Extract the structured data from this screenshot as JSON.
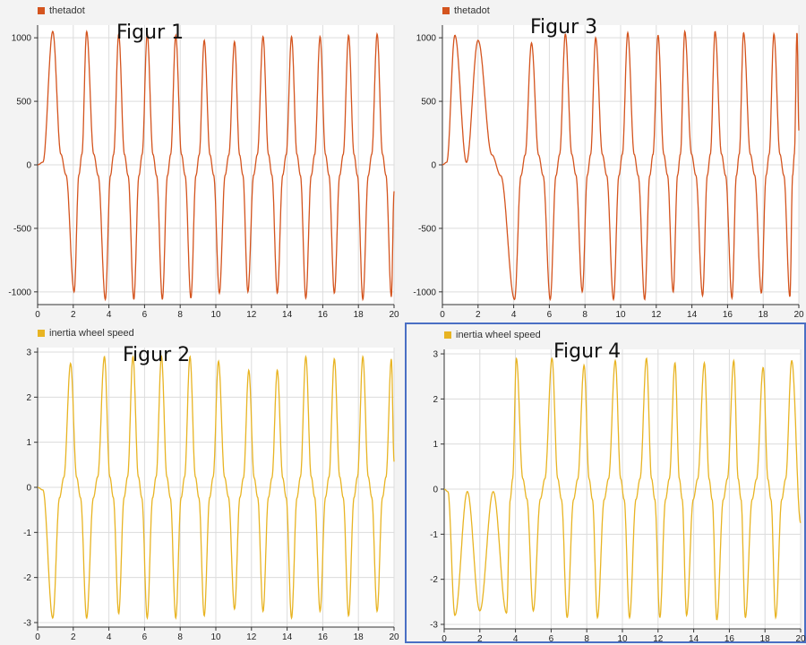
{
  "chart_data": [
    {
      "id": "panel-1",
      "type": "line",
      "figure_label": "Figur 1",
      "series": [
        {
          "name": "thetadot",
          "color": "#d4541e",
          "amplitude": 1000,
          "kind": "thetadot",
          "initial_hump": false
        }
      ],
      "xlim": [
        0,
        20
      ],
      "ylim": [
        -1100,
        1100
      ],
      "xticks": [
        0,
        2,
        4,
        6,
        8,
        10,
        12,
        14,
        16,
        18,
        20
      ],
      "yticks": [
        1000,
        500,
        0,
        -500,
        -1000
      ],
      "peaks_x": [
        0.85,
        2.75,
        4.55,
        6.15,
        7.75,
        9.35,
        11.05,
        12.65,
        14.25,
        15.85,
        17.45,
        19.05
      ],
      "peaks_y": [
        1050,
        1050,
        1030,
        1030,
        1020,
        980,
        970,
        1010,
        1010,
        1010,
        1020,
        1030
      ],
      "troughs_x": [
        2.05,
        3.8,
        5.4,
        7.0,
        8.6,
        10.2,
        11.8,
        13.45,
        15.05,
        16.65,
        18.25,
        19.85
      ],
      "troughs_y": [
        -1000,
        -1060,
        -1060,
        -1060,
        -1050,
        -1010,
        -1000,
        -1010,
        -1050,
        -1010,
        -1060,
        -1040
      ],
      "grid": true,
      "legend_position": "top-left"
    },
    {
      "id": "panel-3",
      "type": "line",
      "figure_label": "Figur 3",
      "series": [
        {
          "name": "thetadot",
          "color": "#d4541e",
          "amplitude": 1000,
          "kind": "thetadot",
          "initial_hump": true
        }
      ],
      "xlim": [
        0,
        20
      ],
      "ylim": [
        -1100,
        1100
      ],
      "xticks": [
        0,
        2,
        4,
        6,
        8,
        10,
        12,
        14,
        16,
        18,
        20
      ],
      "yticks": [
        1000,
        500,
        0,
        -500,
        -1000
      ],
      "humps_x": [
        0.7,
        2.0
      ],
      "humps_y": [
        1020,
        980
      ],
      "peaks_x": [
        5.0,
        6.9,
        8.6,
        10.4,
        12.1,
        13.6,
        15.3,
        16.9,
        18.6,
        19.9
      ],
      "peaks_y": [
        960,
        1030,
        1000,
        1040,
        1020,
        1050,
        1050,
        1040,
        1030,
        1050
      ],
      "troughs_x": [
        4.05,
        6.05,
        7.85,
        9.6,
        11.35,
        12.95,
        14.6,
        16.25,
        17.9,
        19.5
      ],
      "troughs_y": [
        -1060,
        -1060,
        -1000,
        -1060,
        -1060,
        -1000,
        -1030,
        -1050,
        -1010,
        -1040
      ],
      "grid": true,
      "legend_position": "top-left"
    },
    {
      "id": "panel-2",
      "type": "line",
      "figure_label": "Figur 2",
      "series": [
        {
          "name": "inertia wheel speed",
          "color": "#e8b423",
          "kind": "speed"
        }
      ],
      "xlim": [
        0,
        20
      ],
      "ylim": [
        -3.1,
        3.1
      ],
      "xticks": [
        0,
        2,
        4,
        6,
        8,
        10,
        12,
        14,
        16,
        18,
        20
      ],
      "yticks": [
        3,
        2,
        1,
        0,
        -1,
        -2,
        -3
      ],
      "troughs_x": [
        0.85,
        2.75,
        4.55,
        6.15,
        7.75,
        9.35,
        11.05,
        12.65,
        14.25,
        15.85,
        17.45,
        19.05
      ],
      "troughs_y": [
        -2.9,
        -2.9,
        -2.8,
        -2.9,
        -2.9,
        -2.85,
        -2.7,
        -2.75,
        -2.9,
        -2.75,
        -2.85,
        -2.75
      ],
      "peaks_x": [
        1.85,
        3.75,
        5.35,
        6.95,
        8.55,
        10.15,
        11.85,
        13.45,
        15.05,
        16.65,
        18.25,
        19.85
      ],
      "peaks_y": [
        2.75,
        2.9,
        2.9,
        2.9,
        2.9,
        2.8,
        2.6,
        2.6,
        2.9,
        2.85,
        2.9,
        2.85
      ],
      "grid": true,
      "legend_position": "top-left"
    },
    {
      "id": "panel-4",
      "type": "line",
      "figure_label": "Figur 4",
      "series": [
        {
          "name": "inertia wheel speed",
          "color": "#e8b423",
          "kind": "speed_initial"
        }
      ],
      "xlim": [
        0,
        20
      ],
      "ylim": [
        -3.1,
        3.1
      ],
      "xticks": [
        0,
        2,
        4,
        6,
        8,
        10,
        12,
        14,
        16,
        18,
        20
      ],
      "yticks": [
        3,
        2,
        1,
        0,
        -1,
        -2,
        -3
      ],
      "small_troughs_x": [
        0.6,
        2.0
      ],
      "small_troughs_y": [
        -2.8,
        -2.7
      ],
      "troughs_x": [
        3.5,
        5.0,
        6.9,
        8.6,
        10.4,
        12.1,
        13.6,
        15.3,
        16.9,
        18.6
      ],
      "troughs_y": [
        -2.75,
        -2.7,
        -2.85,
        -2.85,
        -2.85,
        -2.85,
        -2.8,
        -2.9,
        -2.85,
        -2.85
      ],
      "peaks_x": [
        4.05,
        6.05,
        7.85,
        9.6,
        11.35,
        12.95,
        14.6,
        16.25,
        17.9,
        19.5
      ],
      "peaks_y": [
        2.9,
        2.9,
        2.75,
        2.85,
        2.9,
        2.8,
        2.8,
        2.85,
        2.7,
        2.85
      ],
      "end_value": -0.75,
      "grid": true,
      "legend_position": "top-left"
    }
  ]
}
